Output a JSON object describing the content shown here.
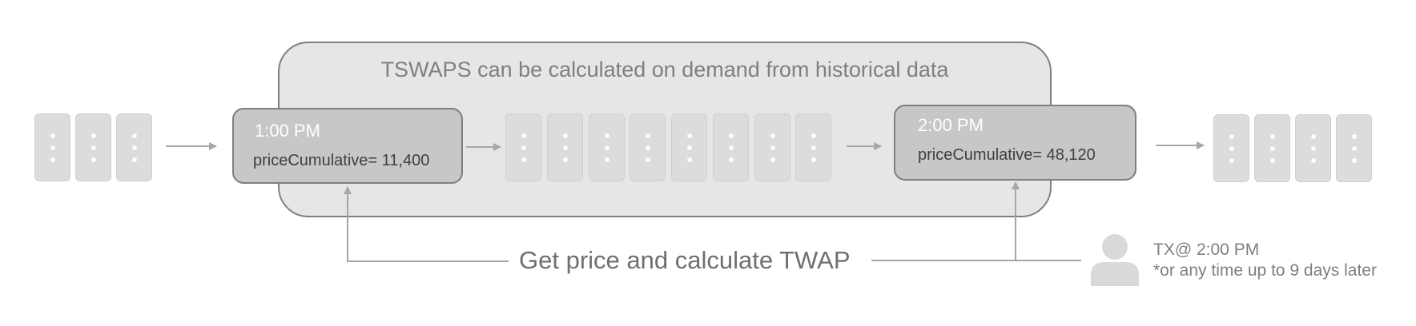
{
  "diagram": {
    "wrapper_title": "TSWAPS can be calculated on demand from historical data",
    "checkpoint_start": {
      "time": "1:00 PM",
      "value": "priceCumulative= 11,400"
    },
    "checkpoint_end": {
      "time": "2:00 PM",
      "value": "priceCumulative= 48,120"
    },
    "caption": "Get price and calculate TWAP",
    "transaction": {
      "line1": "TX@ 2:00 PM",
      "line2": "*or any time up to 9 days later"
    },
    "icons": {
      "user": "user-icon",
      "block": "block-icon",
      "arrow": "arrow-icon"
    },
    "colors": {
      "block": "#dcdcdc",
      "wrapper": "#e6e6e6",
      "checkpoint": "#c8c6c6",
      "line": "#a6a6a6"
    }
  }
}
